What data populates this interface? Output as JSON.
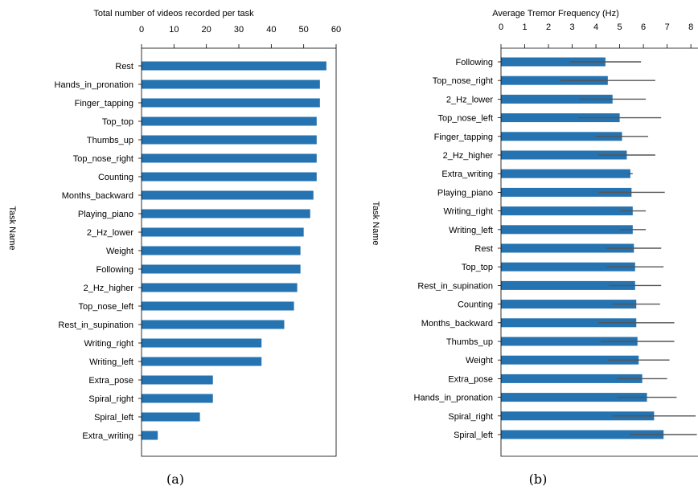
{
  "chart_data": [
    {
      "type": "bar",
      "orientation": "horizontal",
      "title": "Total number of videos recorded per task",
      "ylabel": "Task Name",
      "caption": "(a)",
      "xlim": [
        0,
        60
      ],
      "xticks": [
        0,
        10,
        20,
        30,
        40,
        50,
        60
      ],
      "bar_color": "#2573b0",
      "categories": [
        "Rest",
        "Hands_in_pronation",
        "Finger_tapping",
        "Top_top",
        "Thumbs_up",
        "Top_nose_right",
        "Counting",
        "Months_backward",
        "Playing_piano",
        "2_Hz_lower",
        "Weight",
        "Following",
        "2_Hz_higher",
        "Top_nose_left",
        "Rest_in_supination",
        "Writing_right",
        "Writing_left",
        "Extra_pose",
        "Spiral_right",
        "Spiral_left",
        "Extra_writing"
      ],
      "values": [
        57,
        55,
        55,
        54,
        54,
        54,
        54,
        53,
        52,
        50,
        49,
        49,
        48,
        47,
        44,
        37,
        37,
        22,
        22,
        18,
        5
      ]
    },
    {
      "type": "bar",
      "orientation": "horizontal",
      "title": "Average Tremor Frequency (Hz)",
      "ylabel": "Task Name",
      "caption": "(b)",
      "xlim": [
        0,
        8.3
      ],
      "xticks": [
        0,
        1,
        2,
        3,
        4,
        5,
        6,
        7,
        8
      ],
      "bar_color": "#2573b0",
      "error_color": "#555555",
      "categories": [
        "Following",
        "Top_nose_right",
        "2_Hz_lower",
        "Top_nose_left",
        "Finger_tapping",
        "2_Hz_higher",
        "Extra_writing",
        "Playing_piano",
        "Writing_right",
        "Writing_left",
        "Rest",
        "Top_top",
        "Rest_in_supination",
        "Counting",
        "Months_backward",
        "Thumbs_up",
        "Weight",
        "Extra_pose",
        "Hands_in_pronation",
        "Spiral_right",
        "Spiral_left"
      ],
      "values": [
        4.4,
        4.5,
        4.7,
        5.0,
        5.1,
        5.3,
        5.45,
        5.5,
        5.55,
        5.55,
        5.6,
        5.65,
        5.65,
        5.7,
        5.7,
        5.75,
        5.8,
        5.95,
        6.15,
        6.45,
        6.85
      ],
      "errors": [
        1.5,
        2.0,
        1.4,
        1.75,
        1.1,
        1.2,
        0.1,
        1.4,
        0.55,
        0.55,
        1.15,
        1.2,
        1.1,
        1.0,
        1.6,
        1.55,
        1.3,
        1.05,
        1.25,
        1.75,
        1.4
      ]
    }
  ]
}
